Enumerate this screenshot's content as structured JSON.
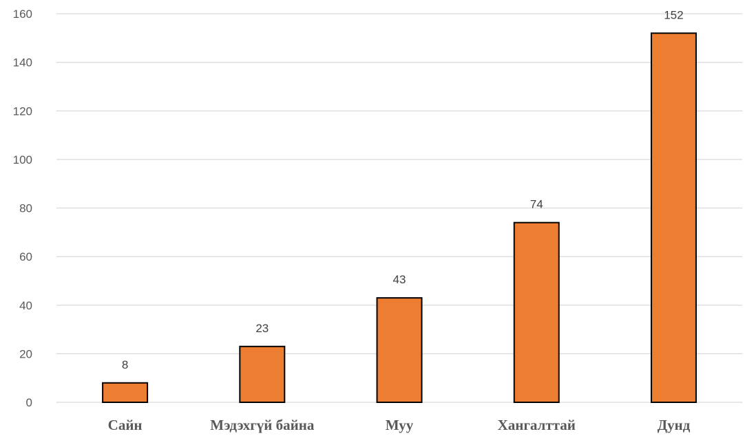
{
  "chart_data": {
    "type": "bar",
    "title": "",
    "xlabel": "",
    "ylabel": "",
    "categories": [
      "Сайн",
      "Мэдэхгүй байна",
      "Муу",
      "Хангалттай",
      "Дунд"
    ],
    "values": [
      8,
      23,
      43,
      74,
      152
    ],
    "data_labels": [
      "8",
      "23",
      "43",
      "74",
      "152"
    ],
    "ylim": [
      0,
      160
    ],
    "yticks": [
      0,
      20,
      40,
      60,
      80,
      100,
      120,
      140,
      160
    ],
    "ytick_labels": [
      "0",
      "20",
      "40",
      "60",
      "80",
      "100",
      "120",
      "140",
      "160"
    ],
    "grid": true,
    "legend": "none",
    "colors": {
      "bar": "#ED7D31",
      "bar_edge": "#000000",
      "grid": "#D9D9D9",
      "tick_text": "#595959",
      "label_text": "#404040"
    }
  }
}
